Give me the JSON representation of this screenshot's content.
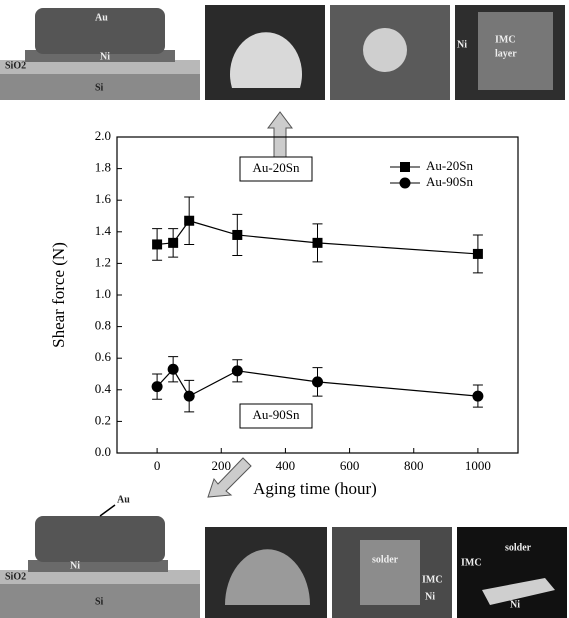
{
  "chart_data": {
    "type": "line",
    "x": [
      0,
      50,
      100,
      250,
      500,
      1000
    ],
    "series": [
      {
        "name": "Au-20Sn",
        "color": "#000000",
        "marker": "square",
        "values": [
          1.32,
          1.33,
          1.47,
          1.38,
          1.33,
          1.26
        ],
        "errors": [
          0.1,
          0.09,
          0.15,
          0.13,
          0.12,
          0.12
        ]
      },
      {
        "name": "Au-90Sn",
        "color": "#000000",
        "marker": "circle",
        "values": [
          0.42,
          0.53,
          0.36,
          0.52,
          0.45,
          0.36
        ],
        "errors": [
          0.08,
          0.08,
          0.1,
          0.07,
          0.09,
          0.07
        ]
      }
    ],
    "xlim": [
      -125,
      1125
    ],
    "xticks": [
      0,
      200,
      400,
      600,
      800,
      1000
    ],
    "ylim": [
      0,
      2
    ],
    "yticks": [
      {
        "value": 0,
        "label": "0.0"
      },
      0.2,
      0.4,
      0.6,
      0.8,
      {
        "value": 1,
        "label": "1.0"
      },
      1.2,
      1.4,
      1.6,
      1.8,
      {
        "value": 2,
        "label": "2.0"
      }
    ],
    "xlabel": "Aging time (hour)",
    "ylabel": "Shear force (N)",
    "legend": "upper right",
    "grid": false,
    "annotations": [
      "Au-20Sn",
      "Au-90Sn"
    ]
  },
  "figure_labels": {
    "top": {
      "au": "Au",
      "sio2": "SiO2",
      "ni": "Ni",
      "si": "Si",
      "panel_ni": "Ni",
      "imc": "IMC",
      "layer": "layer"
    },
    "bottom": {
      "au": "Au",
      "sio2": "SiO2",
      "ni": "Ni",
      "si": "Si",
      "solder": "solder",
      "imc": "IMC",
      "ni2": "Ni",
      "imc2": "IMC",
      "solder2": "solder",
      "ni3": "Ni"
    }
  }
}
